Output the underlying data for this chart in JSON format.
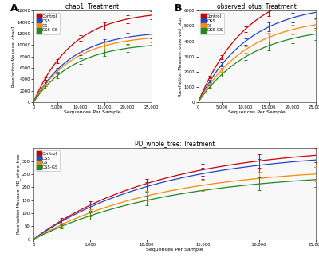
{
  "title_A": "chao1: Treatment",
  "title_B": "observed_otus: Treatment",
  "title_C": "PD_whole_tree: Treatment",
  "xlabel": "Sequences Per Sample",
  "ylabel_A": "Rarefaction Measure: chao1",
  "ylabel_B": "Rarefaction Measure: observed_otus",
  "ylabel_C": "Rarefaction Measure: PD_whole_tree",
  "legend_labels": [
    "Control",
    "DSS",
    "GS",
    "DSS-GS"
  ],
  "colors": [
    "#cc0000",
    "#2244cc",
    "#ff8800",
    "#228822"
  ],
  "x_max": 25000,
  "panel_label_A": "A",
  "panel_label_B": "B",
  "panel_label_C": "C",
  "chao1_params": {
    "Control": {
      "a": 16000,
      "b": 0.00012
    },
    "DSS": {
      "a": 12500,
      "b": 0.00012
    },
    "GS": {
      "a": 11800,
      "b": 0.00012
    },
    "DSS-GS": {
      "a": 10500,
      "b": 0.000115
    }
  },
  "obs_otus_params": {
    "Control": {
      "a": 7800,
      "b": 9.5e-05
    },
    "DSS": {
      "a": 6500,
      "b": 9.5e-05
    },
    "GS": {
      "a": 5600,
      "b": 9.5e-05
    },
    "DSS-GS": {
      "a": 5000,
      "b": 9e-05
    }
  },
  "pd_params": {
    "Control": {
      "a": 360,
      "b": 9e-05
    },
    "DSS": {
      "a": 340,
      "b": 9e-05
    },
    "GS": {
      "a": 280,
      "b": 9e-05
    },
    "DSS-GS": {
      "a": 260,
      "b": 8.5e-05
    }
  },
  "chao1_ylim": [
    0,
    16000
  ],
  "obs_ylim": [
    0,
    6000
  ],
  "pd_ylim": [
    0,
    350
  ],
  "chao1_yticks": [
    0,
    2000,
    4000,
    6000,
    8000,
    10000,
    12000,
    14000,
    16000
  ],
  "obs_yticks": [
    0,
    1000,
    2000,
    3000,
    4000,
    5000,
    6000
  ],
  "pd_yticks": [
    0,
    50,
    100,
    150,
    200,
    250,
    300
  ],
  "xticks_AB": [
    0,
    5000,
    10000,
    15000,
    20000,
    25000
  ],
  "xticks_C": [
    0,
    5000,
    10000,
    15000,
    20000,
    25000
  ],
  "err_x_AB": [
    2500,
    5000,
    10000,
    15000,
    20000,
    25000
  ],
  "err_x_C": [
    2500,
    5000,
    10000,
    15000,
    20000,
    25000
  ],
  "err_chao1": [
    200,
    350,
    500,
    600,
    700,
    750
  ],
  "err_obs": [
    80,
    130,
    200,
    280,
    320,
    380
  ],
  "err_pd": [
    8,
    14,
    18,
    22,
    25,
    28
  ],
  "bg_color": "#ffffff",
  "axes_bg": "#f8f8f8"
}
